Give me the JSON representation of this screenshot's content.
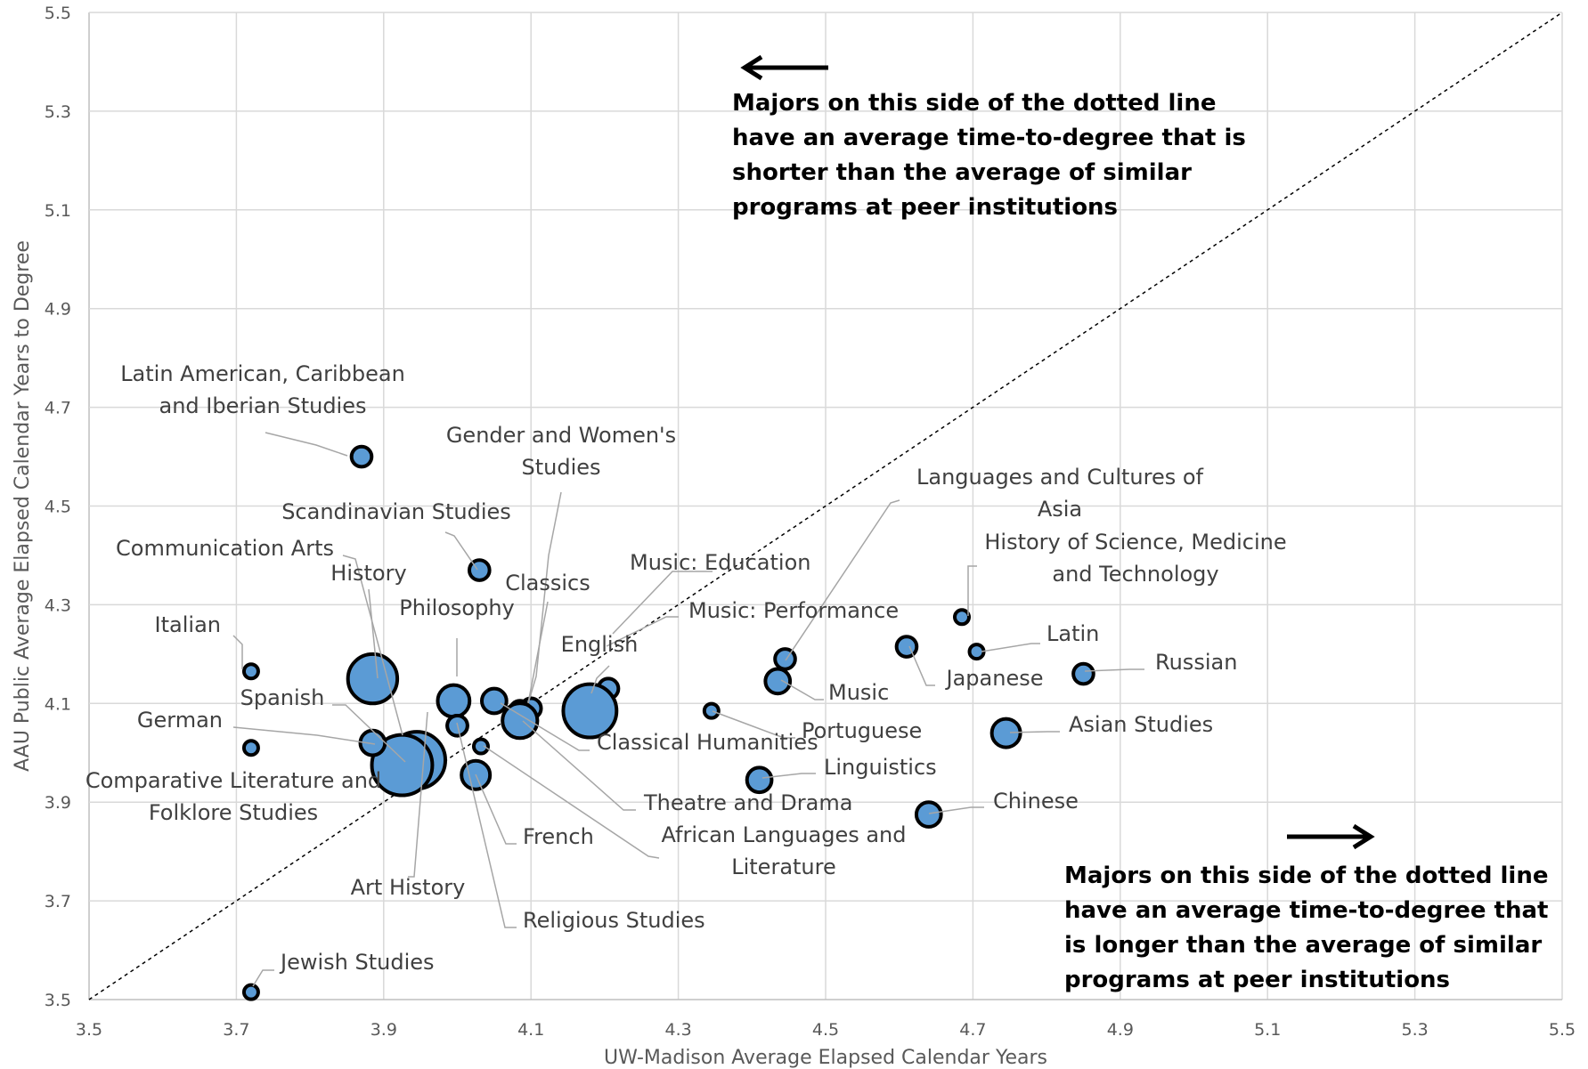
{
  "chart_data": {
    "type": "scatter",
    "xlabel": "UW-Madison Average Elapsed Calendar Years",
    "ylabel": "AAU Public Average Elapsed Calendar Years to Degree",
    "xlim": [
      3.5,
      5.5
    ],
    "ylim": [
      3.5,
      5.5
    ],
    "x_ticks": [
      "3.5",
      "3.7",
      "3.9",
      "4.1",
      "4.3",
      "4.5",
      "4.7",
      "4.9",
      "5.1",
      "5.3",
      "5.5"
    ],
    "y_ticks": [
      "3.5",
      "3.7",
      "3.9",
      "4.1",
      "4.3",
      "4.5",
      "4.7",
      "4.9",
      "5.1",
      "5.3",
      "5.5"
    ],
    "grid": true,
    "reference_line": "y = x (dotted)",
    "colors": {
      "bubble_fill": "#5b9bd5",
      "bubble_stroke": "#000000"
    },
    "points": [
      {
        "label": "Latin American, Caribbean\nand Iberian Studies",
        "x": 3.87,
        "y": 4.6,
        "size": 2
      },
      {
        "label": "Gender and Women's\nStudies",
        "x": 4.1,
        "y": 4.09,
        "size": 2
      },
      {
        "label": "Scandinavian Studies",
        "x": 4.03,
        "y": 4.37,
        "size": 2
      },
      {
        "label": "Communication Arts",
        "x": 3.945,
        "y": 3.985,
        "size": 16
      },
      {
        "label": "History",
        "x": 3.885,
        "y": 4.15,
        "size": 12
      },
      {
        "label": "Classics",
        "x": 4.085,
        "y": 4.085,
        "size": 2
      },
      {
        "label": "Philosophy",
        "x": 3.995,
        "y": 4.105,
        "size": 5
      },
      {
        "label": "Music: Education",
        "x": 4.205,
        "y": 4.13,
        "size": 2
      },
      {
        "label": "Music: Performance",
        "x": 4.195,
        "y": 4.11,
        "size": 2
      },
      {
        "label": "English",
        "x": 4.18,
        "y": 4.085,
        "size": 14
      },
      {
        "label": "Italian",
        "x": 3.72,
        "y": 4.165,
        "size": 1
      },
      {
        "label": "Spanish",
        "x": 3.925,
        "y": 3.975,
        "size": 18
      },
      {
        "label": "German",
        "x": 3.885,
        "y": 4.02,
        "size": 3
      },
      {
        "label": "Comparative Literature and\nFolklore Studies",
        "x": 3.72,
        "y": 4.01,
        "size": 1
      },
      {
        "label": "Art History",
        "x": 4.0,
        "y": 4.055,
        "size": 2
      },
      {
        "label": "French",
        "x": 4.025,
        "y": 3.955,
        "size": 4
      },
      {
        "label": "Religious Studies",
        "x": 4.0,
        "y": 4.055,
        "size": 2
      },
      {
        "label": "Jewish Studies",
        "x": 3.72,
        "y": 3.515,
        "size": 1
      },
      {
        "label": "Classical Humanities",
        "x": 4.05,
        "y": 4.105,
        "size": 3
      },
      {
        "label": "Theatre and Drama",
        "x": 4.085,
        "y": 4.065,
        "size": 6
      },
      {
        "label": "African Languages and\nLiterature",
        "x": 4.032,
        "y": 4.013,
        "size": 1
      },
      {
        "label": "Languages and Cultures of\nAsia",
        "x": 4.445,
        "y": 4.19,
        "size": 2
      },
      {
        "label": "History of Science, Medicine\nand Technology",
        "x": 4.685,
        "y": 4.275,
        "size": 1
      },
      {
        "label": "Latin",
        "x": 4.705,
        "y": 4.205,
        "size": 1
      },
      {
        "label": "Japanese",
        "x": 4.61,
        "y": 4.215,
        "size": 2
      },
      {
        "label": "Russian",
        "x": 4.85,
        "y": 4.16,
        "size": 2
      },
      {
        "label": "Music",
        "x": 4.435,
        "y": 4.145,
        "size": 3
      },
      {
        "label": "Portuguese",
        "x": 4.345,
        "y": 4.085,
        "size": 1
      },
      {
        "label": "Asian Studies",
        "x": 4.745,
        "y": 4.04,
        "size": 4
      },
      {
        "label": "Linguistics",
        "x": 4.41,
        "y": 3.945,
        "size": 3
      },
      {
        "label": "Chinese",
        "x": 4.64,
        "y": 3.875,
        "size": 3
      }
    ],
    "annotations": {
      "upper": "Majors on this side of the dotted line\nhave an average time-to-degree that is\nshorter than the average of similar\nprograms at peer institutions",
      "lower": "Majors on this side of the dotted line\nhave an average time-to-degree that\nis longer than the average of similar\nprograms at peer institutions"
    }
  }
}
